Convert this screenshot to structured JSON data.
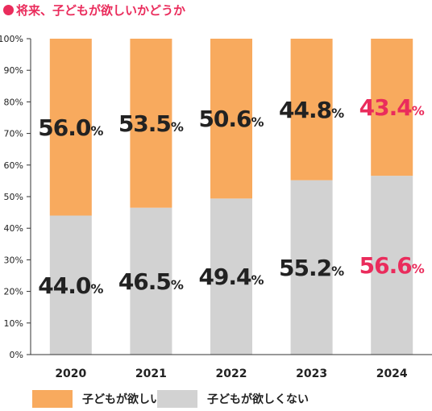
{
  "title": "将来、子どもが欲しいかどうか",
  "colors": {
    "want": "#f8aa5e",
    "not_want": "#d2d2d2",
    "accent": "#ea2c5c",
    "text": "#222222",
    "axis": "#333333"
  },
  "chart_data": {
    "type": "bar",
    "stacked": true,
    "categories": [
      "2020",
      "2021",
      "2022",
      "2023",
      "2024"
    ],
    "series": [
      {
        "name": "子どもが欲しくない",
        "color": "#d2d2d2",
        "values": [
          44.0,
          46.5,
          49.4,
          55.2,
          56.6
        ]
      },
      {
        "name": "子どもが欲しい",
        "color": "#f8aa5e",
        "values": [
          56.0,
          53.5,
          50.6,
          44.8,
          43.4
        ]
      }
    ],
    "data_labels": {
      "not_want": [
        "44.0",
        "46.5",
        "49.4",
        "55.2",
        "56.6"
      ],
      "want": [
        "56.0",
        "53.5",
        "50.6",
        "44.8",
        "43.4"
      ],
      "unit": "%"
    },
    "highlight_category": "2024",
    "ylim": [
      0,
      100
    ],
    "yticks": [
      "0%",
      "10%",
      "20%",
      "30%",
      "40%",
      "50%",
      "60%",
      "70%",
      "80%",
      "90%",
      "100%"
    ],
    "grid": false,
    "legend_position": "bottom",
    "title": "将来、子どもが欲しいかどうか",
    "xlabel": "",
    "ylabel": ""
  },
  "legend": [
    {
      "label": "子どもが欲しい",
      "color": "#f8aa5e"
    },
    {
      "label": "子どもが欲しくない",
      "color": "#d2d2d2"
    }
  ]
}
